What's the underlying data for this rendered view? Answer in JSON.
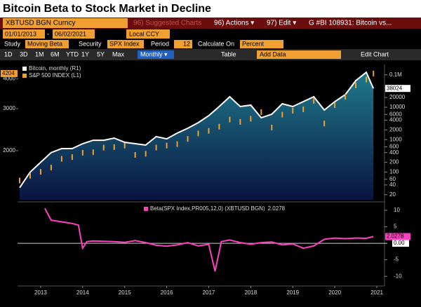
{
  "title": "Bitcoin Beta to Stock Market in Decline",
  "toolbar": {
    "security": "XBTUSD BGN Curncy",
    "suggested": "96) Suggested Charts",
    "actions": "96) Actions ▾",
    "edit": "97) Edit ▾",
    "chart_id": "G #BI 108931: Bitcoin vs...",
    "start_date": "01/01/2013",
    "end_date": "06/02/2021",
    "currency": "Local CCY",
    "study_label": "Study",
    "study": "Moving Beta",
    "security_label": "Security",
    "beta_security": "SPX Index",
    "period_label": "Period",
    "period": 12,
    "calc_label": "Calculate On",
    "calc": "Percent",
    "ranges": [
      "1D",
      "3D",
      "1M",
      "6M",
      "YTD",
      "1Y",
      "5Y",
      "Max"
    ],
    "frequency": "Monthly ▾",
    "table": "Table",
    "add_data": "Add Data",
    "edit_chart": "Edit Chart"
  },
  "chart_data": [
    {
      "type": "line",
      "x": [
        2013.0,
        2013.25,
        2013.5,
        2013.75,
        2014.0,
        2014.25,
        2014.5,
        2014.75,
        2015.0,
        2015.25,
        2015.5,
        2015.75,
        2016.0,
        2016.25,
        2016.5,
        2016.75,
        2017.0,
        2017.25,
        2017.5,
        2017.75,
        2018.0,
        2018.25,
        2018.5,
        2018.75,
        2019.0,
        2019.25,
        2019.5,
        2019.75,
        2020.0,
        2020.25,
        2020.5,
        2020.75,
        2021.0,
        2021.25,
        2021.42
      ],
      "xlim": [
        2012.95,
        2021.55
      ],
      "ylim": [
        1246,
        4347
      ],
      "ylog": true,
      "yticks": [
        2000,
        3000,
        4000
      ],
      "y2lim": [
        14,
        140000
      ],
      "y2log": true,
      "y2ticks": [
        {
          "value": 100000,
          "label": "0.1M"
        },
        40000,
        20000,
        10000,
        6000,
        4000,
        2000,
        1000,
        600,
        400,
        200,
        100,
        60,
        40,
        20
      ],
      "legend": "top-left",
      "series": [
        {
          "name": "Bitcoin, monthly (R1)",
          "color": "#ffffff",
          "axis": "y2",
          "values": [
            33,
            100,
            200,
            400,
            530,
            530,
            750,
            960,
            960,
            1120,
            830,
            750,
            680,
            1240,
            1060,
            1590,
            2250,
            3340,
            5500,
            10500,
            21100,
            10500,
            11600,
            4750,
            6080,
            12800,
            10500,
            14900,
            21100,
            8200,
            14900,
            24500,
            66400,
            120000,
            38024
          ]
        },
        {
          "name": "S&P 500 INDEX (L1)",
          "color": "#f0a030",
          "values": [
            1500,
            1570,
            1630,
            1700,
            1850,
            1880,
            1960,
            1970,
            2060,
            2070,
            2100,
            1920,
            1940,
            2060,
            2100,
            2130,
            2240,
            2360,
            2420,
            2520,
            2700,
            2640,
            2720,
            2900,
            2500,
            2830,
            2940,
            2980,
            3230,
            2600,
            3100,
            3360,
            3750,
            3970,
            4204
          ]
        }
      ]
    },
    {
      "type": "line",
      "x": [
        2013.6,
        2013.75,
        2014.0,
        2014.25,
        2014.4,
        2014.5,
        2014.6,
        2014.75,
        2015.0,
        2015.25,
        2015.5,
        2015.75,
        2016.0,
        2016.25,
        2016.5,
        2016.75,
        2017.0,
        2017.25,
        2017.5,
        2017.65,
        2017.8,
        2018.0,
        2018.25,
        2018.5,
        2018.75,
        2019.0,
        2019.25,
        2019.5,
        2019.75,
        2020.0,
        2020.25,
        2020.5,
        2020.75,
        2021.0,
        2021.25,
        2021.42
      ],
      "xlim": [
        2012.95,
        2021.55
      ],
      "xticks": [
        {
          "value": 2013.5,
          "label": "2013"
        },
        {
          "value": 2014.5,
          "label": "2014"
        },
        {
          "value": 2015.5,
          "label": "2015"
        },
        {
          "value": 2016.5,
          "label": "2016"
        },
        {
          "value": 2017.5,
          "label": "2017"
        },
        {
          "value": 2018.5,
          "label": "2018"
        },
        {
          "value": 2019.5,
          "label": "2019"
        },
        {
          "value": 2020.5,
          "label": "2020"
        },
        {
          "value": 2021.5,
          "label": "2021"
        }
      ],
      "ylim": [
        -12.3,
        11.7
      ],
      "yticks": [
        10,
        5,
        {
          "value": 0,
          "label": "0.00"
        },
        -5,
        -10
      ],
      "series": [
        {
          "name": "Beta(SPX Index,PR005,12,0) (XBTUSD BGN)",
          "color": "#ff40c0",
          "values": [
            10.6,
            7,
            6.5,
            6,
            5.5,
            -1.5,
            0.5,
            0.7,
            0.6,
            0.5,
            0.3,
            0.8,
            0.2,
            -0.6,
            -0.9,
            -0.5,
            0.2,
            -0.8,
            -0.3,
            -8.5,
            0.5,
            1,
            0.2,
            -0.3,
            0.2,
            0.4,
            -0.5,
            -0.2,
            -1.5,
            -0.8,
            1.2,
            1.6,
            1.4,
            1.6,
            1.5,
            2.0278
          ]
        }
      ]
    }
  ]
}
